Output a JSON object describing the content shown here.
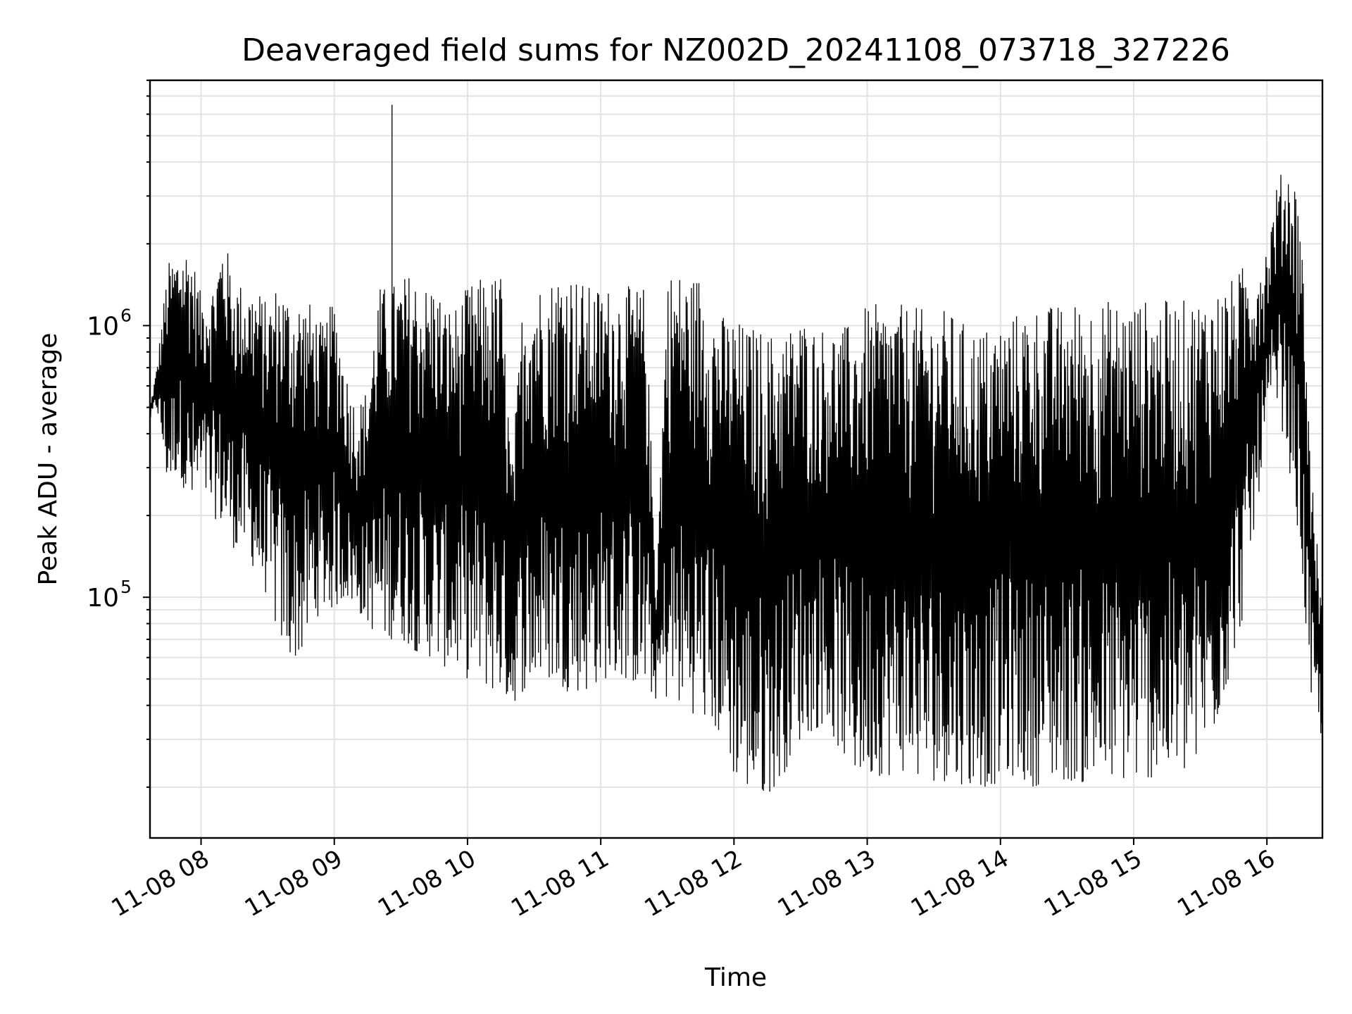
{
  "chart_data": {
    "type": "line",
    "title": "Deaveraged field sums for NZ002D_20241108_073718_327226",
    "xlabel": "Time",
    "ylabel": "Peak ADU - average",
    "y_scale": "log",
    "grid": "major and minor",
    "xlim": [
      "2024-11-08 07:37",
      "2024-11-08 16:25"
    ],
    "ylim": [
      13000,
      8000000
    ],
    "x_ticks": [
      {
        "value": "2024-11-08 08:00",
        "label": "11-08 08"
      },
      {
        "value": "2024-11-08 09:00",
        "label": "11-08 09"
      },
      {
        "value": "2024-11-08 10:00",
        "label": "11-08 10"
      },
      {
        "value": "2024-11-08 11:00",
        "label": "11-08 11"
      },
      {
        "value": "2024-11-08 12:00",
        "label": "11-08 12"
      },
      {
        "value": "2024-11-08 13:00",
        "label": "11-08 13"
      },
      {
        "value": "2024-11-08 14:00",
        "label": "11-08 14"
      },
      {
        "value": "2024-11-08 15:00",
        "label": "11-08 15"
      },
      {
        "value": "2024-11-08 16:00",
        "label": "11-08 16"
      }
    ],
    "y_ticks": [
      {
        "value": 100000,
        "base": "10",
        "exponent": "5"
      },
      {
        "value": 1000000,
        "base": "10",
        "exponent": "6"
      }
    ],
    "series": [
      {
        "color": "#000000",
        "x": [
          "2024-11-08 07:37",
          "2024-11-08 07:40",
          "2024-11-08 07:45",
          "2024-11-08 07:50",
          "2024-11-08 07:55",
          "2024-11-08 08:00",
          "2024-11-08 08:05",
          "2024-11-08 08:10",
          "2024-11-08 08:15",
          "2024-11-08 08:20",
          "2024-11-08 08:25",
          "2024-11-08 08:30",
          "2024-11-08 08:35",
          "2024-11-08 08:40",
          "2024-11-08 08:45",
          "2024-11-08 08:50",
          "2024-11-08 08:55",
          "2024-11-08 09:00",
          "2024-11-08 09:05",
          "2024-11-08 09:10",
          "2024-11-08 09:15",
          "2024-11-08 09:20",
          "2024-11-08 09:25",
          "2024-11-08 09:30",
          "2024-11-08 09:35",
          "2024-11-08 09:40",
          "2024-11-08 09:45",
          "2024-11-08 09:50",
          "2024-11-08 09:55",
          "2024-11-08 10:00",
          "2024-11-08 10:05",
          "2024-11-08 10:10",
          "2024-11-08 10:15",
          "2024-11-08 10:20",
          "2024-11-08 10:25",
          "2024-11-08 10:30",
          "2024-11-08 10:35",
          "2024-11-08 10:40",
          "2024-11-08 10:45",
          "2024-11-08 10:50",
          "2024-11-08 10:55",
          "2024-11-08 11:00",
          "2024-11-08 11:05",
          "2024-11-08 11:10",
          "2024-11-08 11:15",
          "2024-11-08 11:20",
          "2024-11-08 11:25",
          "2024-11-08 11:30",
          "2024-11-08 11:35",
          "2024-11-08 11:40",
          "2024-11-08 11:45",
          "2024-11-08 11:50",
          "2024-11-08 11:55",
          "2024-11-08 12:00",
          "2024-11-08 12:05",
          "2024-11-08 12:10",
          "2024-11-08 12:15",
          "2024-11-08 12:20",
          "2024-11-08 12:25",
          "2024-11-08 12:30",
          "2024-11-08 12:35",
          "2024-11-08 12:40",
          "2024-11-08 12:45",
          "2024-11-08 12:50",
          "2024-11-08 12:55",
          "2024-11-08 13:00",
          "2024-11-08 13:05",
          "2024-11-08 13:10",
          "2024-11-08 13:15",
          "2024-11-08 13:20",
          "2024-11-08 13:25",
          "2024-11-08 13:30",
          "2024-11-08 13:35",
          "2024-11-08 13:40",
          "2024-11-08 13:45",
          "2024-11-08 13:50",
          "2024-11-08 13:55",
          "2024-11-08 14:00",
          "2024-11-08 14:05",
          "2024-11-08 14:10",
          "2024-11-08 14:15",
          "2024-11-08 14:20",
          "2024-11-08 14:25",
          "2024-11-08 14:30",
          "2024-11-08 14:35",
          "2024-11-08 14:40",
          "2024-11-08 14:45",
          "2024-11-08 14:50",
          "2024-11-08 14:55",
          "2024-11-08 15:00",
          "2024-11-08 15:05",
          "2024-11-08 15:10",
          "2024-11-08 15:15",
          "2024-11-08 15:20",
          "2024-11-08 15:25",
          "2024-11-08 15:30",
          "2024-11-08 15:35",
          "2024-11-08 15:40",
          "2024-11-08 15:45",
          "2024-11-08 15:50",
          "2024-11-08 15:55",
          "2024-11-08 16:00",
          "2024-11-08 16:05",
          "2024-11-08 16:10",
          "2024-11-08 16:15",
          "2024-11-08 16:20",
          "2024-11-08 16:25"
        ],
        "upper": [
          500000,
          700000,
          1700000,
          1900000,
          2000000,
          1300000,
          1400000,
          2200000,
          1500000,
          1400000,
          1400000,
          1200000,
          1500000,
          1300000,
          1300000,
          1200000,
          1000000,
          1300000,
          700000,
          500000,
          600000,
          1400000,
          1400000,
          1500000,
          1600000,
          1400000,
          1500000,
          1200000,
          1200000,
          1400000,
          1500000,
          1500000,
          1600000,
          300000,
          1300000,
          1500000,
          1400000,
          1600000,
          1700000,
          1500000,
          1400000,
          1400000,
          1400000,
          1400000,
          1400000,
          1400000,
          120000,
          1600000,
          1600000,
          1500000,
          1600000,
          1200000,
          1100000,
          1100000,
          1000000,
          1000000,
          950000,
          950000,
          1000000,
          1100000,
          1000000,
          1000000,
          1000000,
          1000000,
          1050000,
          1200000,
          1200000,
          1200000,
          1200000,
          1200000,
          1150000,
          1150000,
          1150000,
          1100000,
          1000000,
          1000000,
          1000000,
          1050000,
          1100000,
          1150000,
          1200000,
          1200000,
          1200000,
          1200000,
          1250000,
          1250000,
          1250000,
          1250000,
          1250000,
          1250000,
          1250000,
          1250000,
          1250000,
          1250000,
          1250000,
          1300000,
          1350000,
          1400000,
          1500000,
          1700000,
          1650000,
          2000000,
          3500000,
          4000000,
          3000000,
          300000,
          90000
        ],
        "lower": [
          450000,
          500000,
          250000,
          300000,
          200000,
          250000,
          200000,
          180000,
          150000,
          150000,
          120000,
          100000,
          70000,
          60000,
          60000,
          80000,
          90000,
          90000,
          100000,
          90000,
          80000,
          70000,
          70000,
          70000,
          65000,
          60000,
          60000,
          55000,
          55000,
          50000,
          50000,
          45000,
          45000,
          40000,
          45000,
          48000,
          50000,
          48000,
          45000,
          45000,
          45000,
          50000,
          50000,
          50000,
          48000,
          45000,
          42000,
          42000,
          40000,
          38000,
          36000,
          33000,
          30000,
          22000,
          20000,
          18000,
          19000,
          20000,
          25000,
          30000,
          32000,
          34000,
          30000,
          25000,
          22000,
          22000,
          22000,
          22000,
          23000,
          22000,
          21000,
          21000,
          21000,
          21000,
          20000,
          20000,
          20000,
          21000,
          22000,
          21000,
          20000,
          21000,
          21000,
          21000,
          21000,
          20000,
          20000,
          21000,
          21000,
          21000,
          21000,
          22000,
          22000,
          22000,
          22000,
          25000,
          30000,
          40000,
          60000,
          90000,
          200000,
          400000,
          500000,
          300000,
          150000,
          40000,
          30000
        ],
        "max_point": {
          "x": "2024-11-08 09:26",
          "y": 6500000
        }
      }
    ]
  }
}
